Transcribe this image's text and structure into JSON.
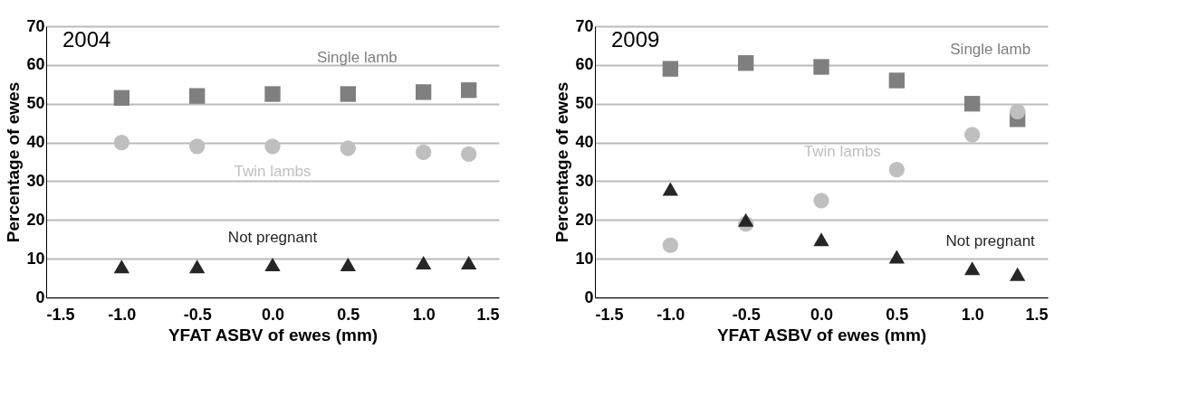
{
  "chart_data": [
    {
      "type": "scatter",
      "annotations": [
        "2004"
      ],
      "xlabel": "YFAT ASBV of ewes (mm)",
      "ylabel": "Percentage of ewes",
      "x": [
        -1.0,
        -0.5,
        0.0,
        0.5,
        1.0,
        1.3
      ],
      "xlim": [
        -1.5,
        1.5
      ],
      "xticks": [
        {
          "value": -1.5,
          "label": "-1.5"
        },
        {
          "value": -1,
          "label": "-1.0"
        },
        {
          "value": -0.5,
          "label": "-0.5"
        },
        {
          "value": 0,
          "label": "0.0"
        },
        {
          "value": 0.5,
          "label": "0.5"
        },
        {
          "value": 1,
          "label": "1.0"
        },
        {
          "value": 1.5,
          "label": "1.5"
        }
      ],
      "ylim": [
        0,
        70
      ],
      "yticks": [
        0,
        10,
        20,
        30,
        40,
        50,
        60,
        70
      ],
      "grid": "y",
      "series": [
        {
          "name": "Single lamb",
          "color": "#7f7f7f",
          "marker": "square",
          "values": [
            51.5,
            52,
            52.5,
            52.5,
            53,
            53.5
          ]
        },
        {
          "name": "Twin lambs",
          "color": "#bfbfbf",
          "marker": "circle",
          "values": [
            40,
            39,
            39,
            38.5,
            37.5,
            37
          ]
        },
        {
          "name": "Not pregnant",
          "color": "#262626",
          "marker": "triangle",
          "values": [
            8,
            8,
            8.5,
            8.5,
            9,
            9
          ]
        }
      ]
    },
    {
      "type": "scatter",
      "annotations": [
        "2009"
      ],
      "xlabel": "YFAT ASBV of ewes (mm)",
      "ylabel": "Percentage of ewes",
      "x": [
        -1.0,
        -0.5,
        0.0,
        0.5,
        1.0,
        1.3
      ],
      "xlim": [
        -1.5,
        1.5
      ],
      "xticks": [
        {
          "value": -1.5,
          "label": "-1.5"
        },
        {
          "value": -1,
          "label": "-1.0"
        },
        {
          "value": -0.5,
          "label": "-0.5"
        },
        {
          "value": 0,
          "label": "0.0"
        },
        {
          "value": 0.5,
          "label": "0.5"
        },
        {
          "value": 1,
          "label": "1.0"
        },
        {
          "value": 1.5,
          "label": "1.5"
        }
      ],
      "ylim": [
        0,
        70
      ],
      "yticks": [
        0,
        10,
        20,
        30,
        40,
        50,
        60,
        70
      ],
      "grid": "y",
      "series": [
        {
          "name": "Single lamb",
          "color": "#7f7f7f",
          "marker": "square",
          "values": [
            59,
            60.5,
            59.5,
            56,
            50,
            46
          ]
        },
        {
          "name": "Twin lambs",
          "color": "#bfbfbf",
          "marker": "circle",
          "values": [
            13.5,
            19,
            25,
            33,
            42,
            48
          ]
        },
        {
          "name": "Not pregnant",
          "color": "#262626",
          "marker": "triangle",
          "values": [
            28,
            20,
            15,
            10.5,
            7.5,
            6
          ]
        }
      ]
    }
  ]
}
